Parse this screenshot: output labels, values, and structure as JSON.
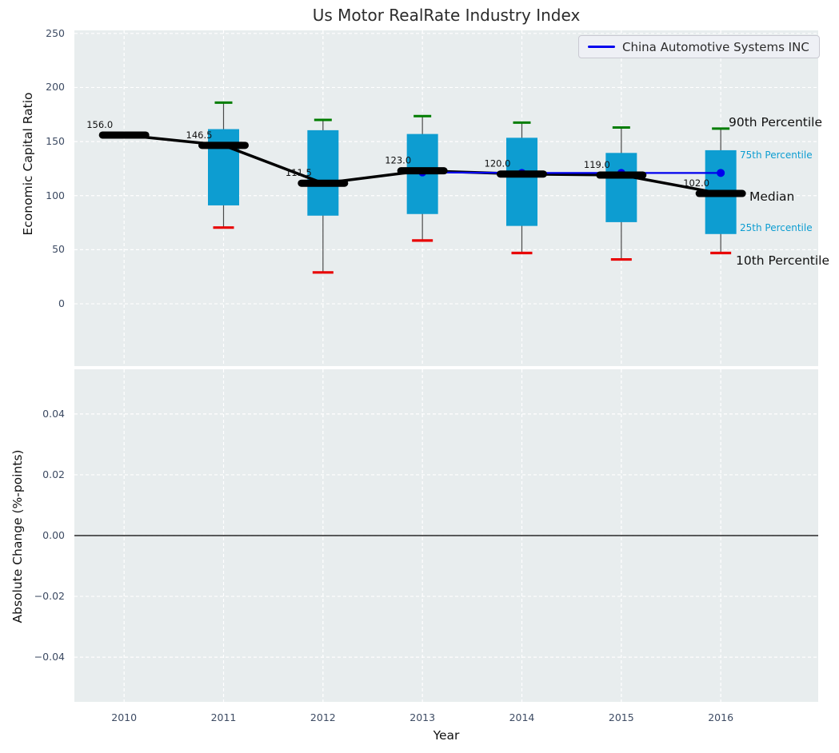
{
  "title": "Us Motor RealRate Industry Index",
  "x_axis": {
    "label": "Year",
    "ticks": [
      2010,
      2011,
      2012,
      2013,
      2014,
      2015,
      2016
    ],
    "tick_labels": [
      "2010",
      "2011",
      "2012",
      "2013",
      "2014",
      "2015",
      "2016"
    ],
    "xlim": [
      2009.5,
      2016.98
    ]
  },
  "top_panel": {
    "ylabel": "Economic Capital Ratio",
    "yticks": [
      0,
      50,
      100,
      150,
      200,
      250
    ],
    "ytick_labels": [
      "0",
      "50",
      "100",
      "150",
      "200",
      "250"
    ],
    "ylim": [
      -57.6,
      252.8
    ]
  },
  "bottom_panel": {
    "ylabel": "Absolute Change (%-points)",
    "yticks": [
      0.04,
      0.02,
      0,
      -0.02,
      -0.04
    ],
    "ytick_labels": [
      "0.04",
      "0.02",
      "0.00",
      "−0.02",
      "−0.04"
    ],
    "ylim": [
      -0.0547,
      0.0547
    ],
    "zero_line_value": 0
  },
  "legend": {
    "label": "China Automotive Systems INC"
  },
  "percentile_labels": {
    "p90": "90th Percentile",
    "p75": "75th Percentile",
    "median": "Median",
    "p25": "25th Percentile",
    "p10": "10th Percentile"
  },
  "colors": {
    "box_fill": "#0d9dd1",
    "whisker_high_cap": "#007d00",
    "whisker_low_cap": "#e80000",
    "median": "#000000",
    "series": "#0000ee",
    "panel_bg": "#e8edee",
    "grid": "#ffffff",
    "tick_label": "#3d4b63",
    "percentile_blue": "#0d9dd1"
  },
  "chart_data": [
    {
      "type": "box",
      "title": "Us Motor RealRate Industry Index",
      "xlabel": "Year",
      "ylabel": "Economic Capital Ratio",
      "ylim": [
        -57.6,
        252.8
      ],
      "grid": true,
      "legend_position": "upper right",
      "categories": [
        2010,
        2011,
        2012,
        2013,
        2014,
        2015,
        2016
      ],
      "boxes": [
        {
          "year": 2010,
          "median": 156.0,
          "q1": null,
          "q3": null,
          "whisker_low": null,
          "whisker_high": null,
          "label": "156.0"
        },
        {
          "year": 2011,
          "median": 146.5,
          "q1": 91.0,
          "q3": 161.5,
          "whisker_low": 70.5,
          "whisker_high": 186.0,
          "label": "146.5"
        },
        {
          "year": 2012,
          "median": 111.5,
          "q1": 81.5,
          "q3": 160.5,
          "whisker_low": 29.0,
          "whisker_high": 170.0,
          "label": "111.5"
        },
        {
          "year": 2013,
          "median": 123.0,
          "q1": 83.0,
          "q3": 157.0,
          "whisker_low": 58.5,
          "whisker_high": 173.5,
          "label": "123.0"
        },
        {
          "year": 2014,
          "median": 120.0,
          "q1": 72.0,
          "q3": 153.5,
          "whisker_low": 47.0,
          "whisker_high": 167.5,
          "label": "120.0"
        },
        {
          "year": 2015,
          "median": 119.0,
          "q1": 75.5,
          "q3": 139.5,
          "whisker_low": 41.0,
          "whisker_high": 163.0,
          "label": "119.0"
        },
        {
          "year": 2016,
          "median": 102.0,
          "q1": 64.5,
          "q3": 142.0,
          "whisker_low": 47.0,
          "whisker_high": 162.0,
          "label": "102.0"
        }
      ],
      "median_values": [
        156.0,
        146.5,
        111.5,
        123.0,
        120.0,
        119.0,
        102.0
      ],
      "series": [
        {
          "name": "China Automotive Systems INC",
          "x": [
            2013,
            2014,
            2015,
            2016
          ],
          "values": [
            121.5,
            121.0,
            121.0,
            121.0
          ],
          "marker": "circle"
        }
      ],
      "annotations": [
        "90th Percentile",
        "75th Percentile",
        "Median",
        "25th Percentile",
        "10th Percentile"
      ]
    },
    {
      "type": "line",
      "title": "",
      "xlabel": "Year",
      "ylabel": "Absolute Change (%-points)",
      "ylim": [
        -0.0547,
        0.0547
      ],
      "grid": true,
      "series": [],
      "zero_line": 0
    }
  ]
}
